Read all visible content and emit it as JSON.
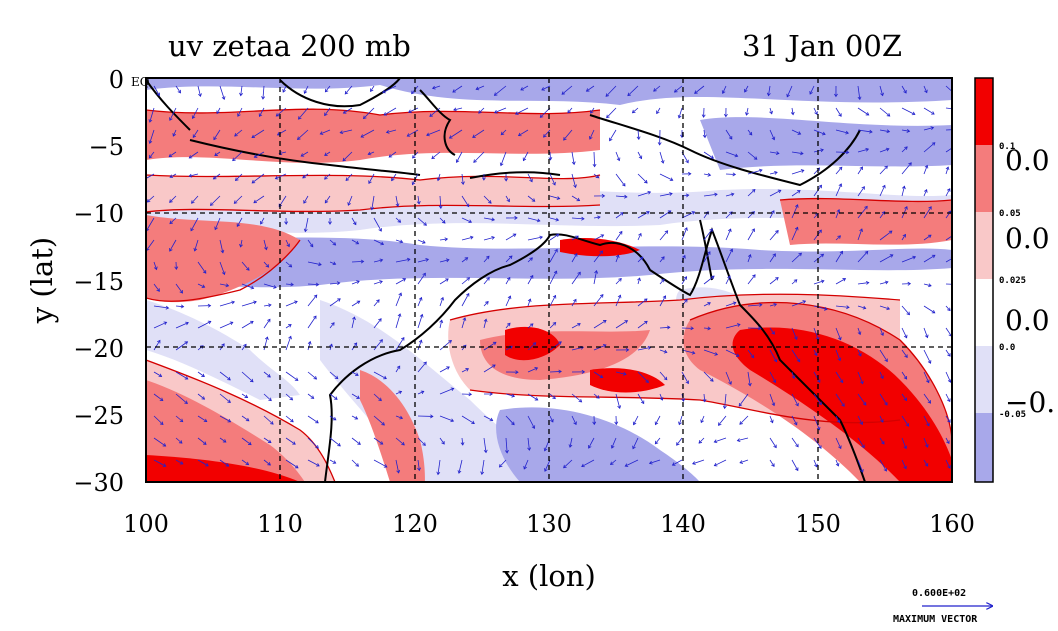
{
  "header": {
    "title_left": "uv zetaa 200 mb",
    "title_right": "31 Jan 00Z"
  },
  "axes": {
    "xlabel": "x (lon)",
    "ylabel": "y (lat)",
    "xlim": [
      100,
      160
    ],
    "ylim": [
      -30,
      0
    ],
    "xticks": [
      "100",
      "110",
      "120",
      "130",
      "140",
      "150",
      "160"
    ],
    "yticks": [
      "0",
      "−5",
      "−10",
      "−15",
      "−20",
      "−25",
      "−30"
    ],
    "corner_label": "EQ",
    "grid_lon": [
      110,
      120,
      130,
      140,
      150
    ],
    "grid_lat": [
      -10,
      -20
    ]
  },
  "colorbar": {
    "colors": [
      "#f20000",
      "#f47c7c",
      "#f9c8c8",
      "#ffffff",
      "#e0e0f7",
      "#a8a8ea"
    ],
    "small_labels": [
      "0.1",
      "0.05",
      "0.025",
      "0.0",
      "-0.05"
    ],
    "large_labels": [
      "0.0",
      "0.0",
      "0.0",
      "−0."
    ]
  },
  "vector_legend": {
    "value": "0.600E+02",
    "caption": "MAXIMUM VECTOR"
  },
  "chart_data": {
    "type": "heatmap",
    "title": "uv zetaa 200 mb",
    "subtitle": "31 Jan 00Z",
    "xlabel": "x (lon)",
    "ylabel": "y (lat)",
    "xlim": [
      100,
      160
    ],
    "ylim": [
      -30,
      0
    ],
    "grid": true,
    "legend": "right",
    "levels": [
      -0.05,
      0.0,
      0.025,
      0.05,
      0.1
    ],
    "features": [
      {
        "name": "strong positive band",
        "lon": [
          100,
          112
        ],
        "lat": [
          -29,
          -28
        ],
        "level": 0.1
      },
      {
        "name": "positive jet band",
        "lon": [
          143,
          160
        ],
        "lat": [
          -30,
          -17
        ],
        "level": 0.1
      },
      {
        "name": "positive streak",
        "lon": [
          126,
          132
        ],
        "lat": [
          -22,
          -19
        ],
        "level": 0.1
      },
      {
        "name": "negative band",
        "lon": [
          100,
          160
        ],
        "lat": [
          -13,
          -11
        ],
        "level": -0.05
      },
      {
        "name": "negative patch",
        "lon": [
          140,
          160
        ],
        "lat": [
          -9,
          -4
        ],
        "level": -0.05
      }
    ]
  }
}
